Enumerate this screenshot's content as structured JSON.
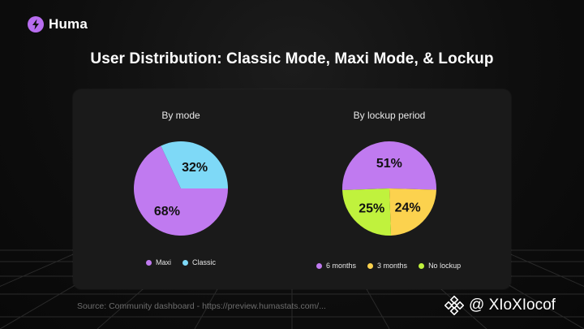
{
  "brand": {
    "name": "Huma",
    "logo_icon": "bolt-icon"
  },
  "title": "User Distribution: Classic Mode, Maxi Mode, & Lockup",
  "chart_data": [
    {
      "type": "pie",
      "title": "By mode",
      "labels": [
        "Maxi",
        "Classic"
      ],
      "values": [
        68,
        32
      ],
      "value_labels": [
        "68%",
        "32%"
      ],
      "colors": [
        "#c07af0",
        "#7ed9f7"
      ],
      "legend": "bottom"
    },
    {
      "type": "pie",
      "title": "By lockup period",
      "labels": [
        "6 months",
        "3 months",
        "No lockup"
      ],
      "values": [
        51,
        24,
        25
      ],
      "value_labels": [
        "51%",
        "24%",
        "25%"
      ],
      "colors": [
        "#c07af0",
        "#fcd24e",
        "#c0f23d"
      ],
      "legend": "bottom"
    }
  ],
  "source": "Source: Community dashboard - https://preview.humastats.com/...",
  "watermark": {
    "text": "@ XIoXIocof",
    "icon": "binance-icon"
  }
}
